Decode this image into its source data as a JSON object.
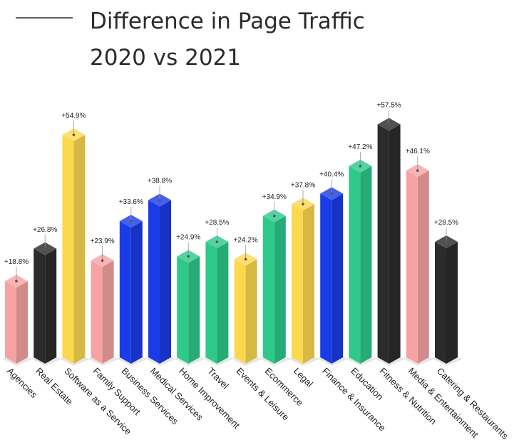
{
  "chart_data": {
    "type": "bar",
    "title_lines": [
      "Difference in Page Traffic",
      "2020 vs 2021"
    ],
    "categories": [
      "Agencies",
      "Real Estate",
      "Software as a Service",
      "Family Support",
      "Business Services",
      "Medical Services",
      "Home Improvement",
      "Travel",
      "Events & Leisure",
      "Ecommerce",
      "Legal",
      "Finance & Insurance",
      "Education",
      "Fitness & Nutrition",
      "Media & Entertainment",
      "Catering & Restaurants"
    ],
    "values": [
      18.8,
      26.8,
      54.9,
      23.9,
      33.6,
      38.8,
      24.9,
      28.5,
      24.2,
      34.9,
      37.8,
      40.4,
      47.2,
      57.5,
      46.1,
      28.5
    ],
    "value_labels": [
      "+18.8%",
      "+26.8%",
      "+54.9%",
      "+23.9%",
      "+33.6%",
      "+38.8%",
      "+24.9%",
      "+28.5%",
      "+24.2%",
      "+34.9%",
      "+37.8%",
      "+40.4%",
      "+47.2%",
      "+57.5%",
      "+46.1%",
      "+28.5%"
    ],
    "colors": [
      "#f7a3a3",
      "#2b2b2b",
      "#fcd84f",
      "#f7a3a3",
      "#1a3ce8",
      "#1a3ce8",
      "#2dc98b",
      "#2dc98b",
      "#fcd84f",
      "#2dc98b",
      "#fcd84f",
      "#1a3ce8",
      "#2dc98b",
      "#2b2b2b",
      "#f7a3a3",
      "#2b2b2b"
    ],
    "ylim": [
      0,
      60
    ],
    "grid": false,
    "legend": "none",
    "style": "3d-bars"
  }
}
